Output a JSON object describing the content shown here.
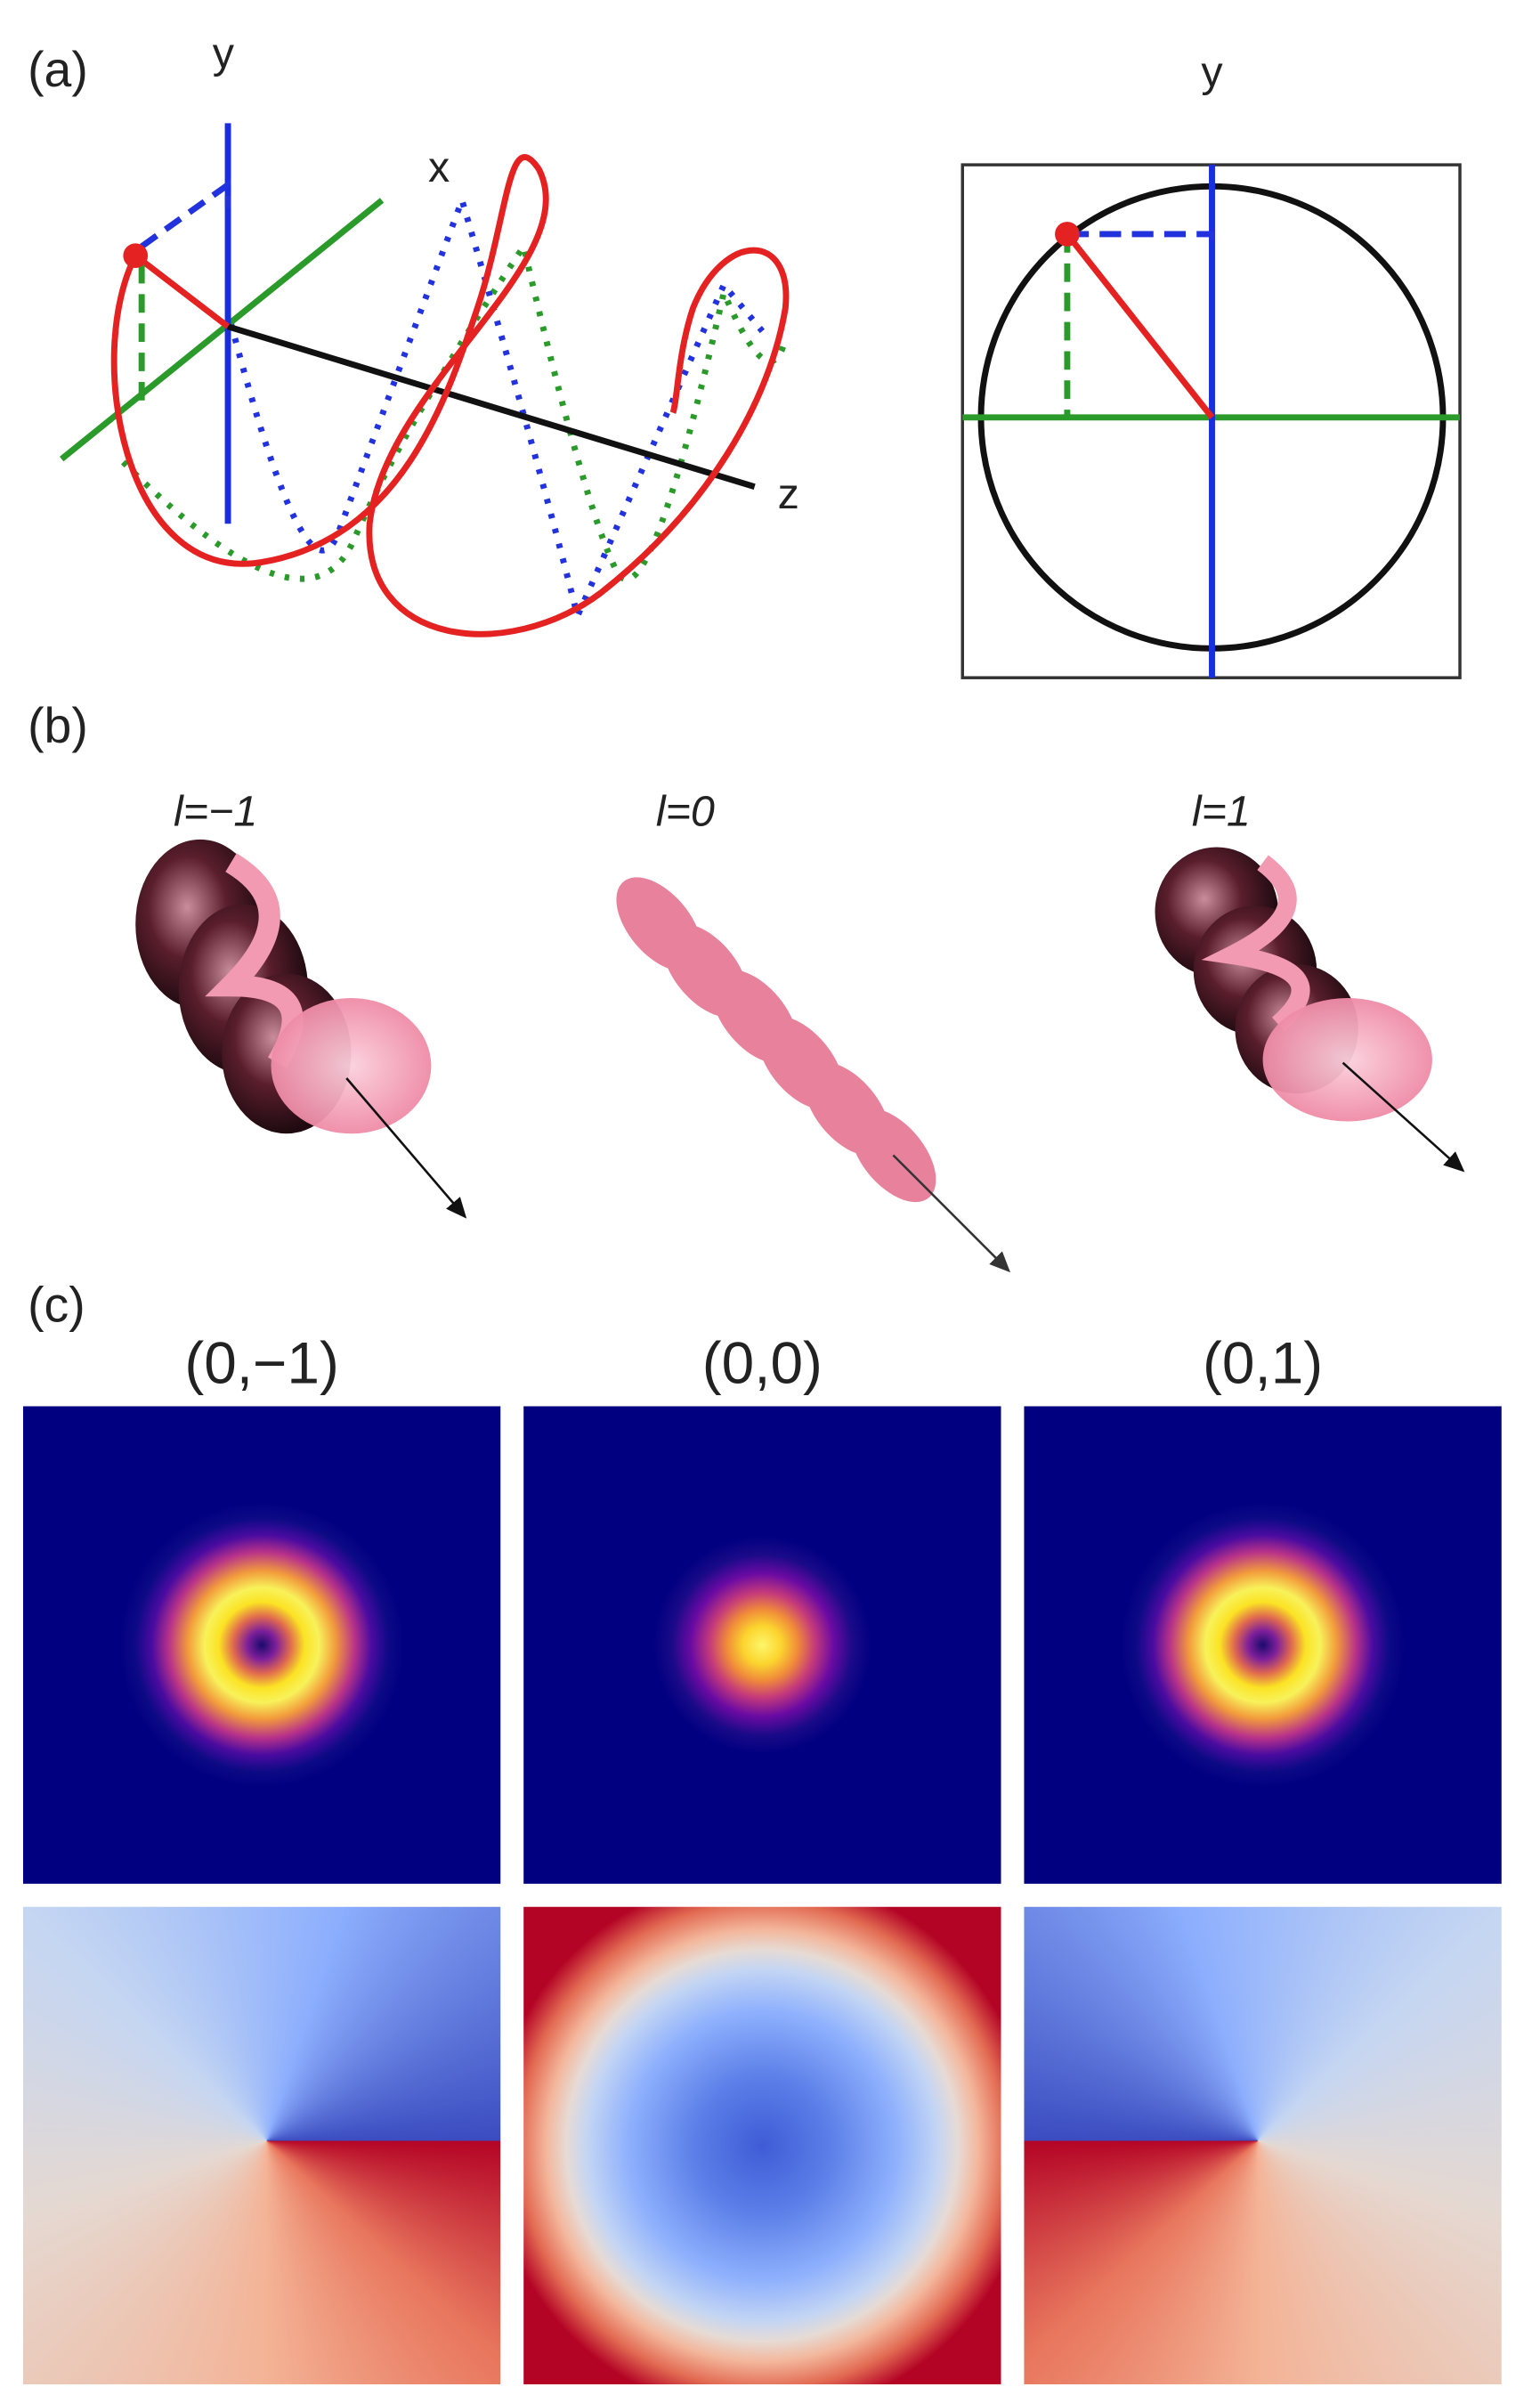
{
  "panel_a": {
    "label": "(a)",
    "axis_y": "y",
    "axis_x": "x",
    "axis_z": "z",
    "projection_axis": "y"
  },
  "panel_b": {
    "label": "(b)",
    "modes": [
      "l=−1",
      "l=0",
      "l=1"
    ]
  },
  "panel_c": {
    "label": "(c)",
    "modes": [
      "(0,−1)",
      "(0,0)",
      "(0,1)"
    ]
  }
}
